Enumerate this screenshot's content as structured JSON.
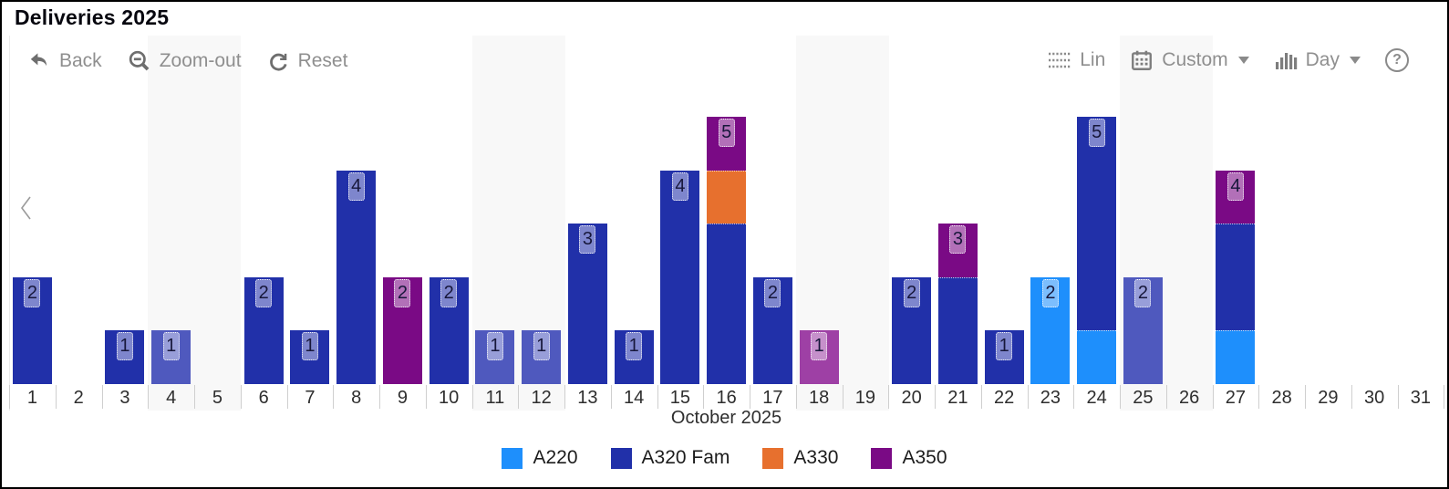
{
  "title": "Deliveries 2025",
  "toolbar": {
    "back_label": "Back",
    "zoom_out_label": "Zoom-out",
    "reset_label": "Reset",
    "lin_label": "Lin",
    "custom_label": "Custom",
    "day_label": "Day",
    "help_glyph": "?"
  },
  "chart_data": {
    "type": "bar",
    "stacked": true,
    "title": "Deliveries 2025",
    "xlabel": "October 2025",
    "ylabel": "",
    "ylim": [
      0,
      6.4
    ],
    "grid": false,
    "legend_position": "bottom",
    "categories": [
      1,
      2,
      3,
      4,
      5,
      6,
      7,
      8,
      9,
      10,
      11,
      12,
      13,
      14,
      15,
      16,
      17,
      18,
      19,
      20,
      21,
      22,
      23,
      24,
      25,
      26,
      27,
      28,
      29,
      30,
      31
    ],
    "weekend_days": [
      4,
      5,
      11,
      12,
      18,
      19,
      25,
      26
    ],
    "series": [
      {
        "name": "A220",
        "color": "#1E8FFC",
        "weekend_color": "#5BA6F3",
        "values": [
          0,
          0,
          0,
          0,
          0,
          0,
          0,
          0,
          0,
          0,
          0,
          0,
          0,
          0,
          0,
          0,
          0,
          0,
          0,
          0,
          0,
          0,
          2,
          1,
          0,
          0,
          1,
          0,
          0,
          0,
          0
        ]
      },
      {
        "name": "A320 Fam",
        "color": "#2130A9",
        "weekend_color": "#4F59BE",
        "values": [
          2,
          0,
          1,
          1,
          0,
          2,
          1,
          4,
          0,
          2,
          1,
          1,
          3,
          1,
          4,
          3,
          2,
          0,
          0,
          2,
          2,
          1,
          0,
          4,
          2,
          0,
          2,
          0,
          0,
          0,
          0
        ]
      },
      {
        "name": "A330",
        "color": "#E7702E",
        "weekend_color": "#EC9260",
        "values": [
          0,
          0,
          0,
          0,
          0,
          0,
          0,
          0,
          0,
          0,
          0,
          0,
          0,
          0,
          0,
          1,
          0,
          0,
          0,
          0,
          0,
          0,
          0,
          0,
          0,
          0,
          0,
          0,
          0,
          0,
          0
        ]
      },
      {
        "name": "A350",
        "color": "#7A0A85",
        "weekend_color": "#9E40A5",
        "values": [
          0,
          0,
          0,
          0,
          0,
          0,
          0,
          0,
          2,
          0,
          0,
          0,
          0,
          0,
          0,
          1,
          0,
          1,
          0,
          0,
          1,
          0,
          0,
          0,
          0,
          0,
          1,
          0,
          0,
          0,
          0
        ]
      }
    ],
    "totals_labels": [
      2,
      0,
      1,
      1,
      0,
      2,
      1,
      4,
      2,
      2,
      1,
      1,
      3,
      1,
      4,
      5,
      2,
      1,
      0,
      2,
      3,
      1,
      2,
      5,
      2,
      0,
      4,
      0,
      0,
      0,
      0
    ]
  },
  "colors": {
    "weekend_stripe": "#f8f8f8",
    "toolbar_text": "#8f8f8f",
    "axis_text": "#2e2e2e"
  }
}
